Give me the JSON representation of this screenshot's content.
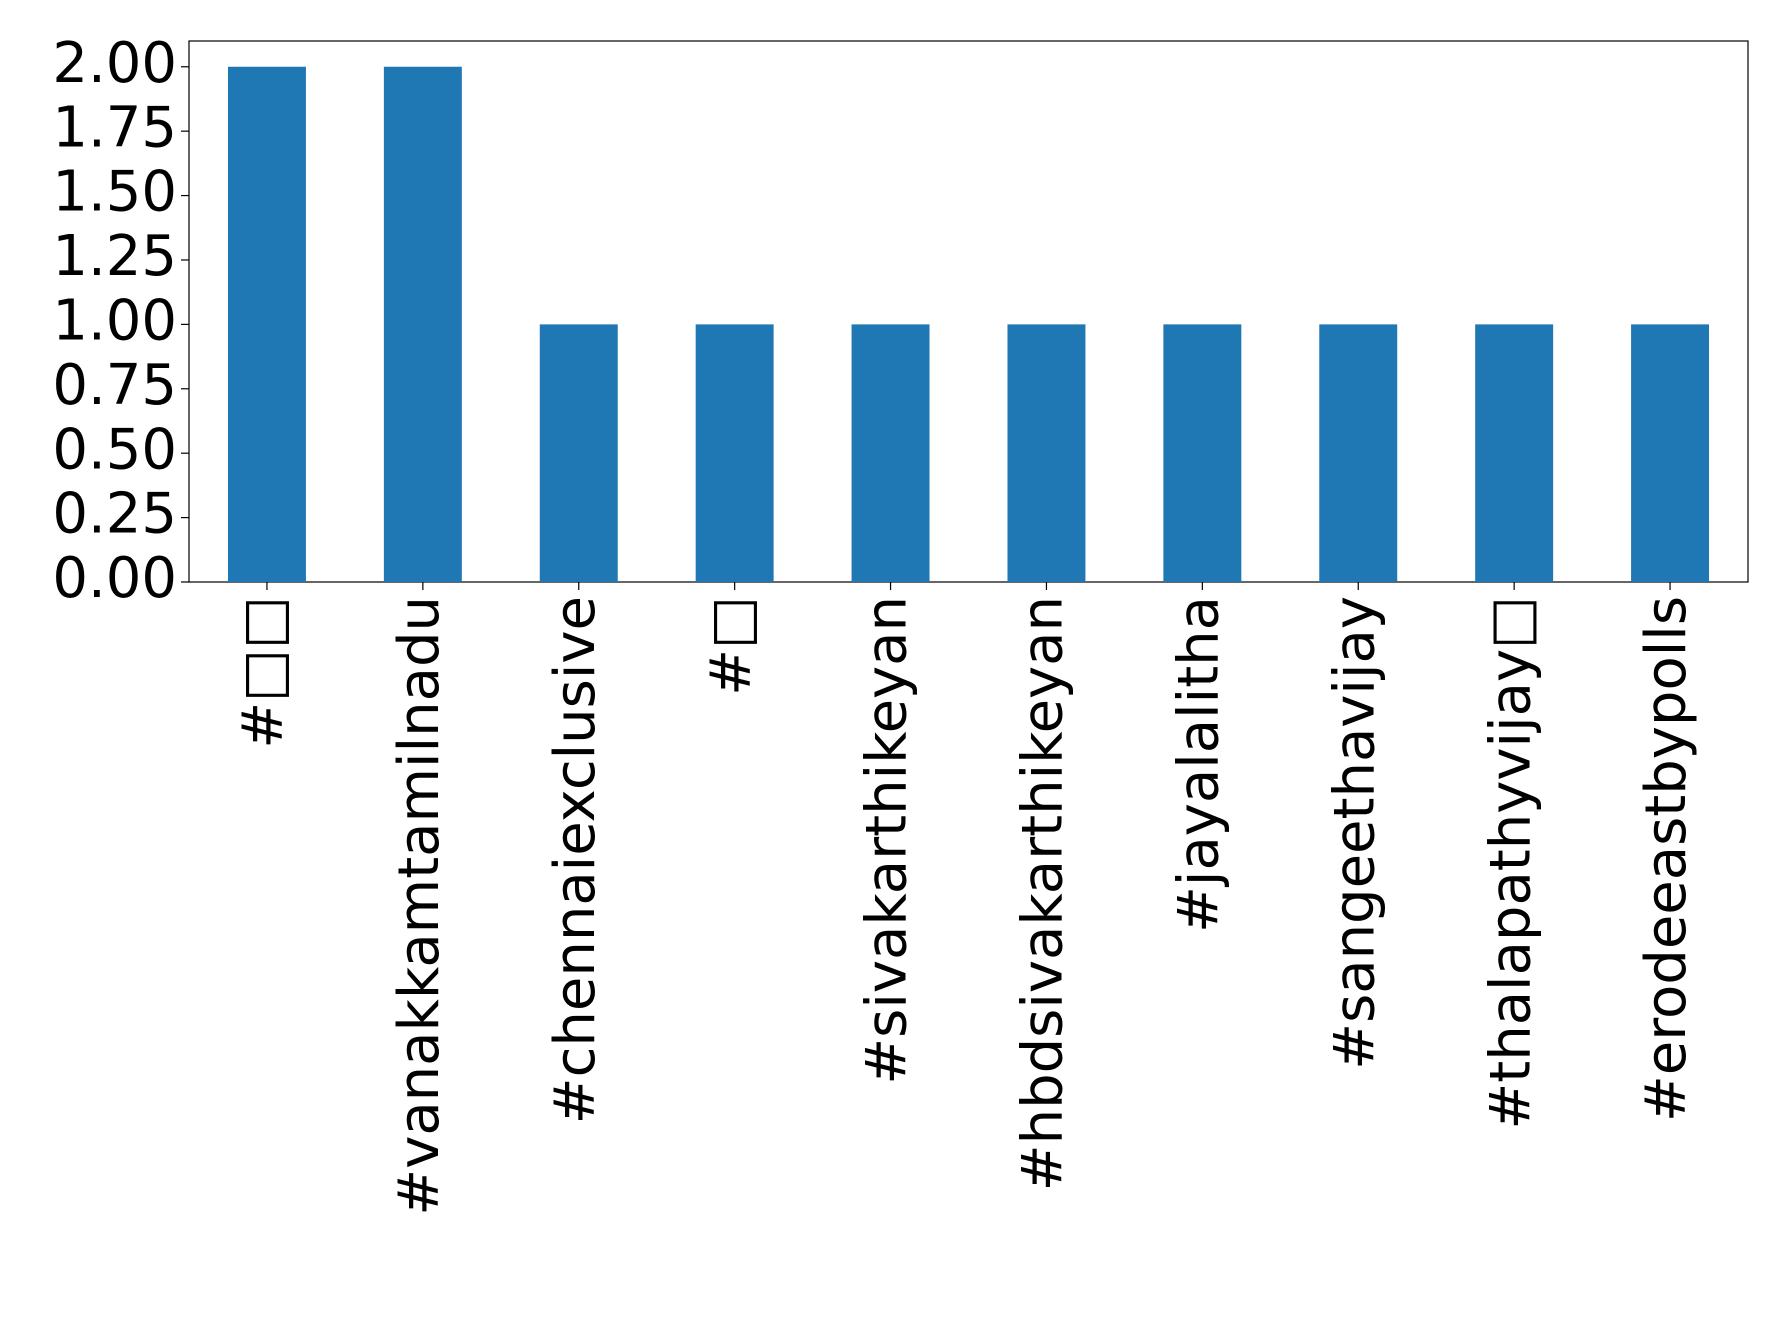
{
  "chart_data": {
    "type": "bar",
    "categories": [
      "#□□",
      "#vanakkamtamilnadu",
      "#chennaiexclusive",
      "#□",
      "#sivakarthikeyan",
      "#hbdsivakarthikeyan",
      "#jayalalitha",
      "#sangeethavijay",
      "#thalapathyvijay□",
      "#erodeeastbypolls"
    ],
    "values": [
      2,
      2,
      1,
      1,
      1,
      1,
      1,
      1,
      1,
      1
    ],
    "color": "#1f77b4",
    "ylim": [
      0,
      2.1
    ],
    "yticks": [
      {
        "value": 0,
        "label": "0.00"
      },
      {
        "value": 0.25,
        "label": "0.25"
      },
      {
        "value": 0.5,
        "label": "0.50"
      },
      {
        "value": 0.75,
        "label": "0.75"
      },
      {
        "value": 1,
        "label": "1.00"
      },
      {
        "value": 1.25,
        "label": "1.25"
      },
      {
        "value": 1.5,
        "label": "1.50"
      },
      {
        "value": 1.75,
        "label": "1.75"
      },
      {
        "value": 2,
        "label": "2.00"
      }
    ],
    "grid": false
  }
}
